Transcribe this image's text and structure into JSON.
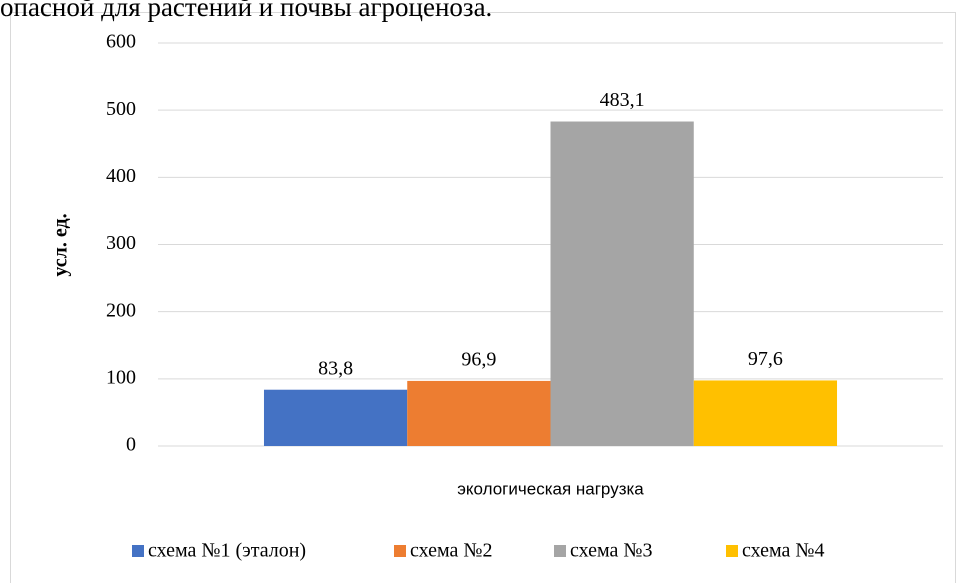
{
  "caption": "опасной для растений и почвы агроценоза.",
  "chart_data": {
    "type": "bar",
    "y_label": "усл. ед.",
    "categories": [
      "экологическая нагрузка"
    ],
    "series": [
      {
        "name": "схема №1 (эталон)",
        "color": "#4472c4",
        "values": [
          83.8
        ],
        "value_labels": [
          "83,8"
        ]
      },
      {
        "name": "схема №2",
        "color": "#ed7d31",
        "values": [
          96.9
        ],
        "value_labels": [
          "96,9"
        ]
      },
      {
        "name": "схема №3",
        "color": "#a5a5a5",
        "values": [
          483.1
        ],
        "value_labels": [
          "483,1"
        ]
      },
      {
        "name": "схема №4",
        "color": "#ffc000",
        "values": [
          97.6
        ],
        "value_labels": [
          "97,6"
        ]
      }
    ],
    "ylim": [
      0,
      600
    ],
    "yticks": [
      0,
      100,
      200,
      300,
      400,
      500,
      600
    ],
    "grid": true,
    "legend": "bottom"
  }
}
